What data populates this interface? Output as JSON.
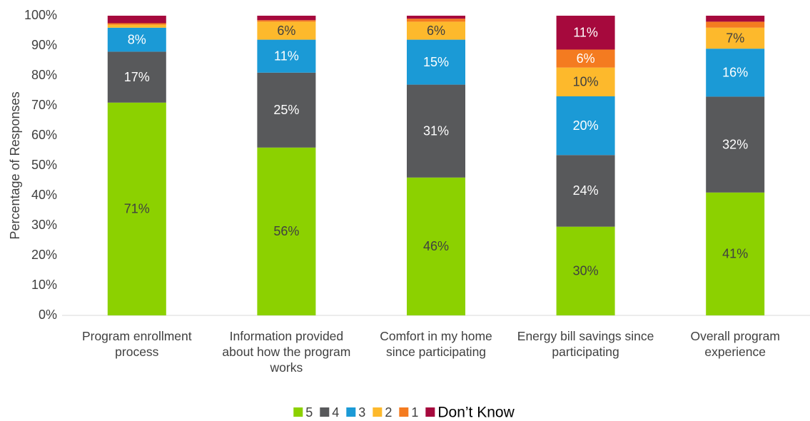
{
  "chart_data": {
    "type": "stacked_bar",
    "y_label": "Percentage of Responses",
    "categories": [
      "Program enrollment process",
      "Information provided about how the program works",
      "Comfort in my home since participating",
      "Energy bill savings since participating",
      "Overall program experience"
    ],
    "series": [
      {
        "name": "5",
        "color": "#8cd100",
        "values": [
          71,
          56,
          46,
          29.6,
          41
        ],
        "value_labels": [
          "71%",
          "56%",
          "46%",
          "30%",
          "41%"
        ]
      },
      {
        "name": "4",
        "color": "#58595b",
        "values": [
          17,
          25,
          31,
          23.9,
          32
        ],
        "value_labels": [
          "17%",
          "25%",
          "31%",
          "24%",
          "32%"
        ]
      },
      {
        "name": "3",
        "color": "#1b9ad6",
        "values": [
          8,
          11,
          15,
          19.6,
          16
        ],
        "value_labels": [
          "8%",
          "11%",
          "15%",
          "20%",
          "16%"
        ]
      },
      {
        "name": "2",
        "color": "#fdb92c",
        "values": [
          1,
          6,
          6,
          9.6,
          7
        ],
        "value_labels": [
          null,
          "6%",
          "6%",
          "10%",
          "7%"
        ]
      },
      {
        "name": "1",
        "color": "#f47b20",
        "values": [
          0.5,
          0.5,
          1,
          6,
          2
        ],
        "value_labels": [
          null,
          null,
          null,
          "6%",
          null
        ]
      },
      {
        "name": "Don’t Know",
        "color": "#a6093d",
        "values": [
          2.5,
          1.5,
          1,
          11.3,
          2
        ],
        "value_labels": [
          null,
          null,
          null,
          "11%",
          null
        ]
      }
    ],
    "ylim": [
      0,
      100
    ],
    "yticks": [
      {
        "value": 0,
        "label": "0%"
      },
      {
        "value": 10,
        "label": "10%"
      },
      {
        "value": 20,
        "label": "20%"
      },
      {
        "value": 30,
        "label": "30%"
      },
      {
        "value": 40,
        "label": "40%"
      },
      {
        "value": 50,
        "label": "50%"
      },
      {
        "value": 60,
        "label": "60%"
      },
      {
        "value": 70,
        "label": "70%"
      },
      {
        "value": 80,
        "label": "80%"
      },
      {
        "value": 90,
        "label": "90%"
      },
      {
        "value": 100,
        "label": "100%"
      }
    ],
    "grid": false,
    "legend": "bottom"
  }
}
